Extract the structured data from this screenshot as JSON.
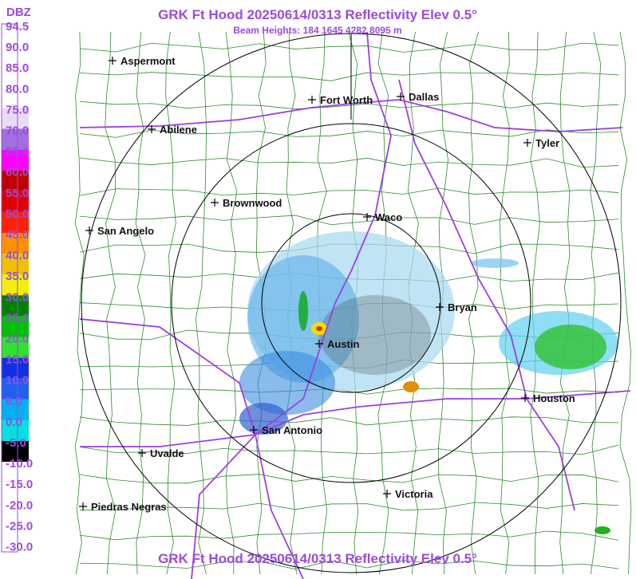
{
  "header": {
    "title": "GRK Ft Hood 20250614/0313 Reflectivity Elev 0.5°",
    "subtitle": "Beam Heights: 184 1645 4282 8095 m"
  },
  "footer": {
    "title": "GRK Ft Hood 20250614/0313 Reflectivity Elev 0.5°"
  },
  "legend": {
    "unit": "DBZ",
    "labels": [
      "94.5",
      "90.0",
      "85.0",
      "80.0",
      "75.0",
      "70.0",
      "65.0",
      "60.0",
      "55.0",
      "50.0",
      "45.0",
      "40.0",
      "35.0",
      "30.0",
      "25.0",
      "20.0",
      "15.0",
      "10.0",
      "5.0",
      "0.0",
      "-5.0",
      "-10.0",
      "-15.0",
      "-20.0",
      "-25.0",
      "-30.0"
    ],
    "colors": [
      "#ffffff",
      "#ffffff",
      "#ffffff",
      "#ffffff",
      "#e8dcf4",
      "#a070e0",
      "#ff00ff",
      "#c00000",
      "#e00000",
      "#ff2000",
      "#ff9000",
      "#f0c000",
      "#f0f000",
      "#008000",
      "#00c000",
      "#30e030",
      "#1030e0",
      "#2060f0",
      "#00b0f0",
      "#00e0e0",
      "#000000",
      "#ffffff",
      "#ffffff",
      "#ffffff",
      "#ffffff",
      "#ffffff"
    ]
  },
  "cities": [
    "Aspermont",
    "Fort Worth",
    "Dallas",
    "Abilene",
    "Tyler",
    "Brownwood",
    "Waco",
    "San Angelo",
    "Bryan",
    "Austin",
    "Houston",
    "San Antonio",
    "Uvalde",
    "Victoria",
    "Piedras Negras"
  ]
}
